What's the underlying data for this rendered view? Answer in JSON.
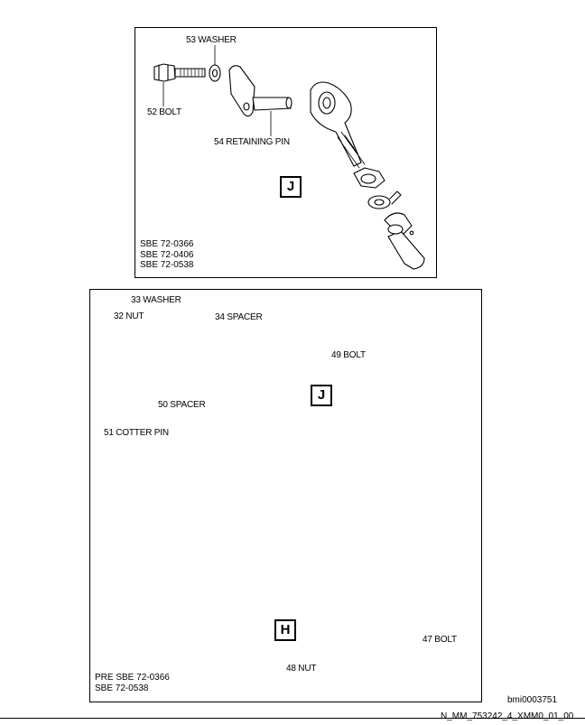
{
  "top_view": {
    "labels": {
      "washer_53": "53 WASHER",
      "bolt_52": "52 BOLT",
      "retaining_pin_54": "54 RETAINING PIN"
    },
    "detail_marker": "J",
    "effectivity": [
      "SBE 72-0366",
      "SBE 72-0406",
      "SBE 72-0538"
    ]
  },
  "bottom_view": {
    "labels": {
      "washer_33": "33 WASHER",
      "nut_32": "32 NUT",
      "spacer_34": "34 SPACER",
      "bolt_49": "49 BOLT",
      "spacer_50": "50 SPACER",
      "cotter_pin_51": "51 COTTER PIN",
      "bolt_47": "47 BOLT",
      "nut_48": "48 NUT"
    },
    "detail_marker_j": "J",
    "detail_marker_h": "H",
    "effectivity": [
      "PRE SBE 72-0366",
      "SBE 72-0538"
    ]
  },
  "figure_id": "bmi0003751",
  "document_ref": "N_MM_753242_4_XMM0_01_00"
}
